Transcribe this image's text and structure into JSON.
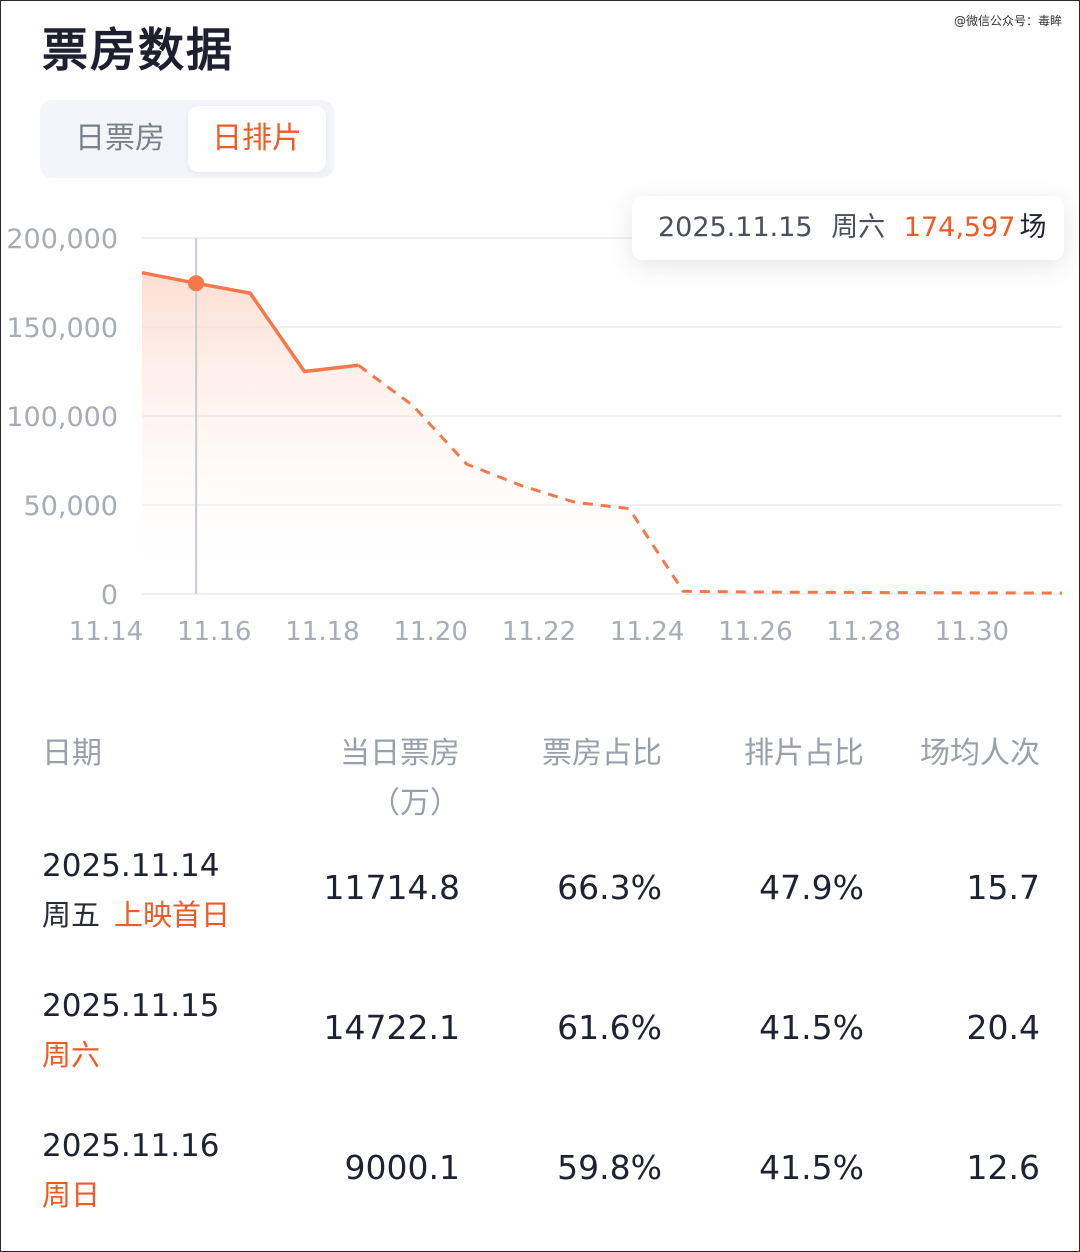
{
  "watermark": "@微信公众号：毒眸",
  "page_title": "票房数据",
  "tabs": [
    {
      "label": "日票房",
      "active": false
    },
    {
      "label": "日排片",
      "active": true
    }
  ],
  "tooltip": {
    "date": "2025.11.15",
    "weekday": "周六",
    "value": "174,597",
    "unit": "场"
  },
  "colors": {
    "accent": "#f05a24",
    "line": "#f6784a",
    "muted": "#9aa0aa"
  },
  "chart_data": {
    "type": "line",
    "x": [
      "11.14",
      "11.15",
      "11.16",
      "11.17",
      "11.18",
      "11.19",
      "11.20",
      "11.21",
      "11.22",
      "11.23",
      "11.24",
      "11.25",
      "11.26",
      "11.27",
      "11.28",
      "11.29",
      "11.30",
      "12.01"
    ],
    "y": [
      180500,
      174597,
      169000,
      125000,
      128500,
      106000,
      73000,
      61000,
      51500,
      48000,
      1500,
      1200,
      1000,
      900,
      800,
      700,
      600,
      500
    ],
    "actual_until": "11.18",
    "forecast_style": "dashed",
    "highlight": "11.15",
    "ylim": [
      0,
      200000
    ],
    "yticks": [
      "0",
      "50,000",
      "100,000",
      "150,000",
      "200,000"
    ],
    "xticks": [
      "11.14",
      "11.16",
      "11.18",
      "11.20",
      "11.22",
      "11.24",
      "11.26",
      "11.28",
      "11.30"
    ],
    "grid": true
  },
  "table": {
    "headers": {
      "date": "日期",
      "box": "当日票房",
      "box_unit": "（万）",
      "box_share": "票房占比",
      "show_share": "排片占比",
      "avg": "场均人次"
    },
    "rows": [
      {
        "date": "2025.11.14",
        "weekday": "周五",
        "weekday_highlight": false,
        "tag": "上映首日",
        "box": "11714.8",
        "box_share": "66.3%",
        "show_share": "47.9%",
        "avg": "15.7"
      },
      {
        "date": "2025.11.15",
        "weekday": "周六",
        "weekday_highlight": true,
        "tag": "",
        "box": "14722.1",
        "box_share": "61.6%",
        "show_share": "41.5%",
        "avg": "20.4"
      },
      {
        "date": "2025.11.16",
        "weekday": "周日",
        "weekday_highlight": true,
        "tag": "",
        "box": "9000.1",
        "box_share": "59.8%",
        "show_share": "41.5%",
        "avg": "12.6"
      }
    ]
  }
}
